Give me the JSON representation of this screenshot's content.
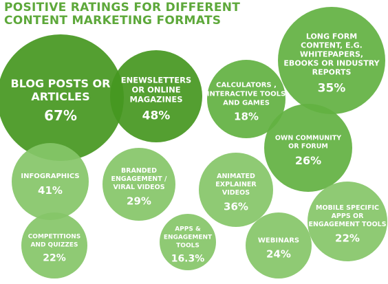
{
  "title": {
    "line1": "POSITIVE RATINGS FOR DIFFERENT",
    "line2": "CONTENT MARKETING FORMATS"
  },
  "colors": {
    "title": "#5da83a",
    "bubble_dark": "#45971f",
    "bubble_mid": "#62b141",
    "bubble_light": "#86c568",
    "label": "#ffffff"
  },
  "chart_data": {
    "type": "bubble",
    "title": "POSITIVE RATINGS FOR DIFFERENT CONTENT MARKETING FORMATS",
    "unit": "%",
    "items": [
      {
        "label_lines": [
          "BLOG POSTS OR",
          "ARTICLES"
        ],
        "value_text": "67%",
        "value": 67
      },
      {
        "label_lines": [
          "ENEWSLETTERS",
          "OR ONLINE",
          "MAGAZINES"
        ],
        "value_text": "48%",
        "value": 48
      },
      {
        "label_lines": [
          "CALCULATORS ,",
          "INTERACTIVE TOOLS",
          "AND GAMES"
        ],
        "value_text": "18%",
        "value": 18
      },
      {
        "label_lines": [
          "LONG FORM",
          "CONTENT, E.G.",
          "WHITEPAPERS,",
          "EBOOKS OR INDUSTRY",
          "REPORTS"
        ],
        "value_text": "35%",
        "value": 35
      },
      {
        "label_lines": [
          "OWN COMMUNITY",
          "OR FORUM"
        ],
        "value_text": "26%",
        "value": 26
      },
      {
        "label_lines": [
          "INFOGRAPHICS"
        ],
        "value_text": "41%",
        "value": 41
      },
      {
        "label_lines": [
          "BRANDED",
          "ENGAGEMENT /",
          "VIRAL VIDEOS"
        ],
        "value_text": "29%",
        "value": 29
      },
      {
        "label_lines": [
          "ANIMATED",
          "EXPLAINER",
          "VIDEOS"
        ],
        "value_text": "36%",
        "value": 36
      },
      {
        "label_lines": [
          "MOBILE SPECIFIC",
          "APPS OR",
          "ENGAGEMENT TOOLS"
        ],
        "value_text": "22%",
        "value": 22
      },
      {
        "label_lines": [
          "COMPETITIONS",
          "AND QUIZZES"
        ],
        "value_text": "22%",
        "value": 22
      },
      {
        "label_lines": [
          "APPS &",
          "ENGAGEMENT",
          "TOOLS"
        ],
        "value_text": "16.3%",
        "value": 16.3
      },
      {
        "label_lines": [
          "WEBINARS"
        ],
        "value_text": "24%",
        "value": 24
      }
    ]
  }
}
